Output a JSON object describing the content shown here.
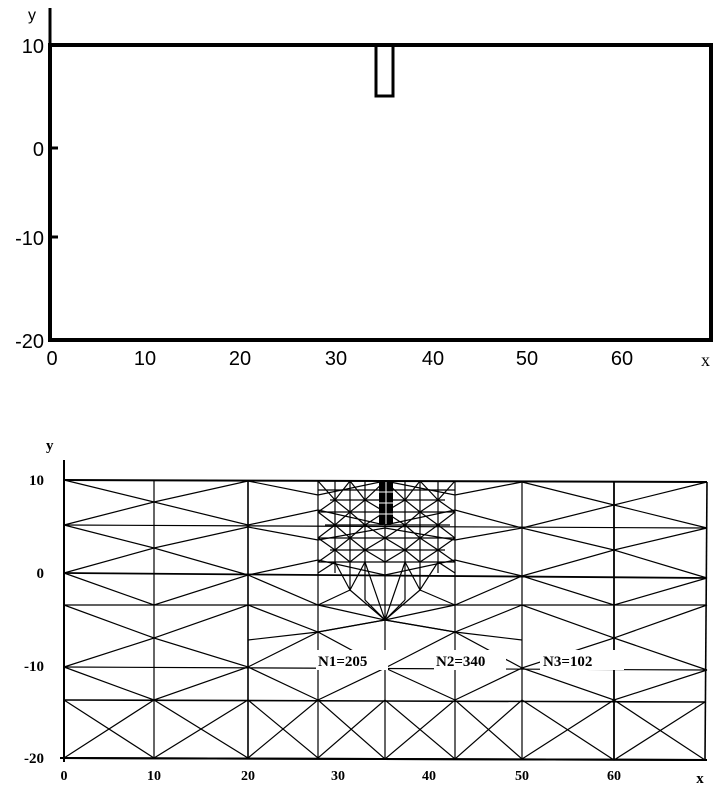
{
  "top_panel": {
    "y_axis_label": "y",
    "x_axis_label": "x",
    "y_ticks": [
      "10",
      "0",
      "-10",
      "-20"
    ],
    "x_ticks": [
      "0",
      "10",
      "20",
      "30",
      "40",
      "50",
      "60"
    ]
  },
  "bottom_panel": {
    "y_axis_label": "y",
    "x_axis_label": "x",
    "y_ticks": [
      "10",
      "0",
      "-10",
      "-20"
    ],
    "x_ticks": [
      "0",
      "10",
      "20",
      "30",
      "40",
      "50",
      "60"
    ],
    "annotations": [
      "N1=205",
      "N2=340",
      "N3=102"
    ]
  },
  "colors": {
    "ink": "#000000",
    "background": "#ffffff"
  }
}
